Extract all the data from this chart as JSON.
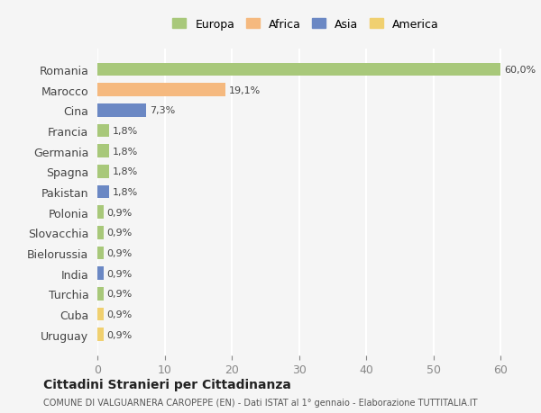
{
  "categories": [
    "Romania",
    "Marocco",
    "Cina",
    "Francia",
    "Germania",
    "Spagna",
    "Pakistan",
    "Polonia",
    "Slovacchia",
    "Bielorussia",
    "India",
    "Turchia",
    "Cuba",
    "Uruguay"
  ],
  "values": [
    60.0,
    19.1,
    7.3,
    1.8,
    1.8,
    1.8,
    1.8,
    0.9,
    0.9,
    0.9,
    0.9,
    0.9,
    0.9,
    0.9
  ],
  "labels": [
    "60,0%",
    "19,1%",
    "7,3%",
    "1,8%",
    "1,8%",
    "1,8%",
    "1,8%",
    "0,9%",
    "0,9%",
    "0,9%",
    "0,9%",
    "0,9%",
    "0,9%",
    "0,9%"
  ],
  "colors": [
    "#a8c87a",
    "#f5b97f",
    "#6b88c4",
    "#a8c87a",
    "#a8c87a",
    "#a8c87a",
    "#6b88c4",
    "#a8c87a",
    "#a8c87a",
    "#a8c87a",
    "#6b88c4",
    "#a8c87a",
    "#f0d070",
    "#f0d070"
  ],
  "continent": [
    "Europa",
    "Africa",
    "Asia",
    "Europa",
    "Europa",
    "Europa",
    "Asia",
    "Europa",
    "Europa",
    "Europa",
    "Asia",
    "Europa",
    "America",
    "America"
  ],
  "legend_labels": [
    "Europa",
    "Africa",
    "Asia",
    "America"
  ],
  "legend_colors": [
    "#a8c87a",
    "#f5b97f",
    "#6b88c4",
    "#f0d070"
  ],
  "xlim": [
    0,
    62
  ],
  "xticks": [
    0,
    10,
    20,
    30,
    40,
    50,
    60
  ],
  "title": "Cittadini Stranieri per Cittadinanza",
  "subtitle": "COMUNE DI VALGUARNERA CAROPEPE (EN) - Dati ISTAT al 1° gennaio - Elaborazione TUTTITALIA.IT",
  "bg_color": "#f5f5f5",
  "grid_color": "#ffffff",
  "bar_height": 0.65
}
